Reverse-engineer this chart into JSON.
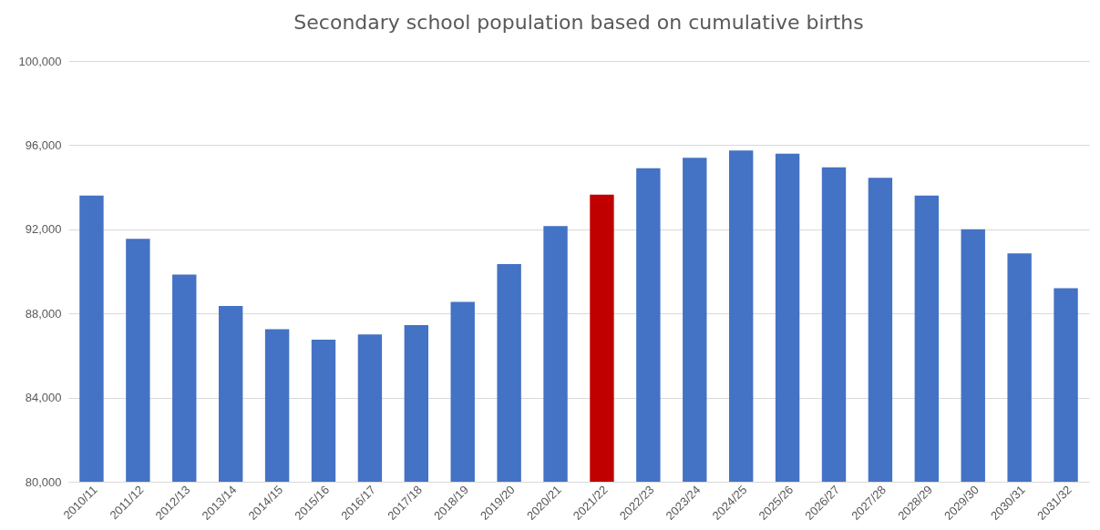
{
  "chart_data": {
    "type": "bar",
    "title": "Secondary school population based on cumulative births",
    "categories": [
      "2010/11",
      "2011/12",
      "2012/13",
      "2013/14",
      "2014/15",
      "2015/16",
      "2016/17",
      "2017/18",
      "2018/19",
      "2019/20",
      "2020/21",
      "2021/22",
      "2022/23",
      "2023/24",
      "2024/25",
      "2025/26",
      "2026/27",
      "2027/28",
      "2028/29",
      "2029/30",
      "2030/31",
      "2031/32"
    ],
    "values": [
      93600,
      91550,
      89850,
      88350,
      87250,
      86750,
      87000,
      87450,
      88550,
      90350,
      92150,
      93650,
      94900,
      95400,
      95750,
      95600,
      94950,
      94450,
      93600,
      92000,
      90850,
      89200
    ],
    "colors": [
      "#4472c4",
      "#4472c4",
      "#4472c4",
      "#4472c4",
      "#4472c4",
      "#4472c4",
      "#4472c4",
      "#4472c4",
      "#4472c4",
      "#4472c4",
      "#4472c4",
      "#c00000",
      "#4472c4",
      "#4472c4",
      "#4472c4",
      "#4472c4",
      "#4472c4",
      "#4472c4",
      "#4472c4",
      "#4472c4",
      "#4472c4",
      "#4472c4"
    ],
    "ylim": [
      80000,
      100000
    ],
    "yticks": [
      {
        "value": 80000,
        "label": "80,000"
      },
      {
        "value": 84000,
        "label": "84,000"
      },
      {
        "value": 88000,
        "label": "88,000"
      },
      {
        "value": 92000,
        "label": "92,000"
      },
      {
        "value": 96000,
        "label": "96,000"
      },
      {
        "value": 100000,
        "label": "100,000"
      }
    ],
    "grid": "y"
  }
}
